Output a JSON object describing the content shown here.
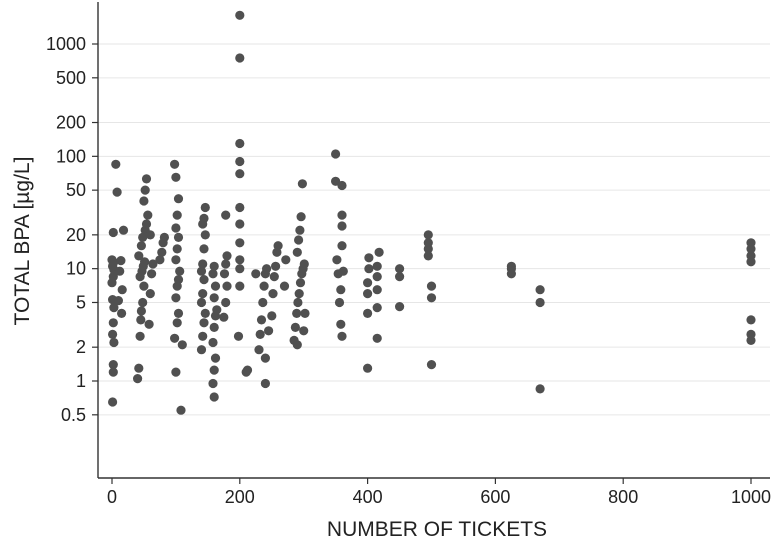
{
  "chart_data": {
    "type": "scatter",
    "title": "",
    "xlabel": "NUMBER OF TICKETS",
    "ylabel": "TOTAL BPA [µg/L]",
    "xlim": [
      -20,
      1020
    ],
    "ylim": [
      0.1,
      3000
    ],
    "y_scale": "log",
    "grid": "horizontal",
    "x_ticks": [
      0,
      200,
      400,
      600,
      800,
      1000
    ],
    "x_tick_labels": [
      "0",
      "200",
      "400",
      "600",
      "800",
      "1000"
    ],
    "y_ticks": [
      0.5,
      1,
      2,
      5,
      10,
      20,
      50,
      100,
      200,
      500,
      1000
    ],
    "y_tick_labels": [
      "0.5",
      "1",
      "2",
      "5",
      "10",
      "20",
      "50",
      "100",
      "200",
      "500",
      "1000"
    ],
    "marker_color": "#505050",
    "series": [
      {
        "points": [
          [
            1,
            0.65
          ],
          [
            2,
            1.2
          ],
          [
            2,
            1.4
          ],
          [
            3,
            2.2
          ],
          [
            1,
            2.6
          ],
          [
            2,
            3.3
          ],
          [
            3,
            4.5
          ],
          [
            1,
            5.3
          ],
          [
            0,
            7.5
          ],
          [
            2,
            8.5
          ],
          [
            3,
            9.8
          ],
          [
            1,
            10.5
          ],
          [
            2,
            11.2
          ],
          [
            0,
            12.0
          ],
          [
            2,
            21
          ],
          [
            6,
            85
          ],
          [
            8,
            48
          ],
          [
            10,
            5.2
          ],
          [
            12,
            9.5
          ],
          [
            14,
            11.8
          ],
          [
            16,
            6.5
          ],
          [
            18,
            22
          ],
          [
            15,
            4.0
          ],
          [
            40,
            1.05
          ],
          [
            42,
            1.3
          ],
          [
            44,
            2.5
          ],
          [
            45,
            3.5
          ],
          [
            46,
            4.2
          ],
          [
            48,
            5.0
          ],
          [
            50,
            7.0
          ],
          [
            44,
            8.5
          ],
          [
            47,
            9.5
          ],
          [
            49,
            10.5
          ],
          [
            51,
            11.5
          ],
          [
            42,
            13.0
          ],
          [
            46,
            16
          ],
          [
            48,
            19
          ],
          [
            52,
            22
          ],
          [
            54,
            25
          ],
          [
            56,
            30
          ],
          [
            50,
            40
          ],
          [
            52,
            50
          ],
          [
            54,
            63
          ],
          [
            58,
            3.2
          ],
          [
            60,
            6.0
          ],
          [
            62,
            9.0
          ],
          [
            64,
            11.0
          ],
          [
            60,
            20
          ],
          [
            75,
            12.0
          ],
          [
            78,
            14.0
          ],
          [
            80,
            17.0
          ],
          [
            82,
            19.0
          ],
          [
            100,
            1.2
          ],
          [
            98,
            2.4
          ],
          [
            102,
            3.3
          ],
          [
            104,
            4.0
          ],
          [
            100,
            5.5
          ],
          [
            102,
            7.0
          ],
          [
            104,
            8.0
          ],
          [
            106,
            9.5
          ],
          [
            100,
            12.0
          ],
          [
            102,
            15.0
          ],
          [
            104,
            19.0
          ],
          [
            100,
            23.0
          ],
          [
            102,
            30.0
          ],
          [
            104,
            42.0
          ],
          [
            100,
            65.0
          ],
          [
            98,
            85.0
          ],
          [
            108,
            0.55
          ],
          [
            110,
            2.1
          ],
          [
            140,
            1.9
          ],
          [
            142,
            2.5
          ],
          [
            144,
            3.3
          ],
          [
            146,
            4.0
          ],
          [
            140,
            5.0
          ],
          [
            142,
            6.0
          ],
          [
            144,
            8.0
          ],
          [
            140,
            9.5
          ],
          [
            142,
            11.0
          ],
          [
            144,
            15.0
          ],
          [
            146,
            20.0
          ],
          [
            142,
            25.0
          ],
          [
            144,
            28.0
          ],
          [
            146,
            35.0
          ],
          [
            160,
            0.72
          ],
          [
            158,
            0.95
          ],
          [
            160,
            1.25
          ],
          [
            162,
            1.6
          ],
          [
            158,
            2.2
          ],
          [
            160,
            3.0
          ],
          [
            162,
            3.8
          ],
          [
            164,
            4.3
          ],
          [
            160,
            5.5
          ],
          [
            162,
            7.0
          ],
          [
            158,
            9.0
          ],
          [
            160,
            10.5
          ],
          [
            175,
            3.7
          ],
          [
            178,
            5.0
          ],
          [
            180,
            7.0
          ],
          [
            176,
            9.0
          ],
          [
            178,
            11.0
          ],
          [
            180,
            13.0
          ],
          [
            178,
            30.0
          ],
          [
            200,
            1800
          ],
          [
            200,
            750
          ],
          [
            200,
            130
          ],
          [
            200,
            90
          ],
          [
            200,
            70
          ],
          [
            198,
            2.5
          ],
          [
            200,
            7.0
          ],
          [
            200,
            10.0
          ],
          [
            200,
            12.0
          ],
          [
            200,
            17.0
          ],
          [
            200,
            25.0
          ],
          [
            200,
            35.0
          ],
          [
            210,
            1.2
          ],
          [
            212,
            1.25
          ],
          [
            230,
            1.9
          ],
          [
            232,
            2.6
          ],
          [
            234,
            3.5
          ],
          [
            236,
            5.0
          ],
          [
            238,
            7.0
          ],
          [
            240,
            9.0
          ],
          [
            242,
            10.0
          ],
          [
            240,
            1.6
          ],
          [
            240,
            0.95
          ],
          [
            225,
            9.0
          ],
          [
            245,
            2.8
          ],
          [
            250,
            3.8
          ],
          [
            252,
            6.0
          ],
          [
            254,
            8.5
          ],
          [
            256,
            10.5
          ],
          [
            258,
            14.0
          ],
          [
            260,
            16.0
          ],
          [
            270,
            7.0
          ],
          [
            272,
            12.0
          ],
          [
            285,
            2.3
          ],
          [
            287,
            3.0
          ],
          [
            289,
            4.0
          ],
          [
            291,
            5.0
          ],
          [
            293,
            6.0
          ],
          [
            295,
            7.5
          ],
          [
            297,
            9.0
          ],
          [
            299,
            10.0
          ],
          [
            301,
            11.0
          ],
          [
            290,
            14.0
          ],
          [
            292,
            18.0
          ],
          [
            294,
            22.0
          ],
          [
            296,
            29.0
          ],
          [
            298,
            57.0
          ],
          [
            290,
            2.1
          ],
          [
            300,
            2.8
          ],
          [
            302,
            4.0
          ],
          [
            350,
            105
          ],
          [
            350,
            60
          ],
          [
            352,
            12.0
          ],
          [
            354,
            9.0
          ],
          [
            356,
            5.0
          ],
          [
            358,
            6.5
          ],
          [
            360,
            55.0
          ],
          [
            360,
            30.0
          ],
          [
            360,
            24.0
          ],
          [
            360,
            16.0
          ],
          [
            362,
            9.5
          ],
          [
            358,
            3.2
          ],
          [
            360,
            2.5
          ],
          [
            400,
            1.3
          ],
          [
            400,
            4.0
          ],
          [
            400,
            6.0
          ],
          [
            400,
            7.5
          ],
          [
            402,
            10.0
          ],
          [
            402,
            12.5
          ],
          [
            415,
            2.4
          ],
          [
            415,
            4.5
          ],
          [
            415,
            6.5
          ],
          [
            415,
            8.5
          ],
          [
            415,
            10.5
          ],
          [
            418,
            14.0
          ],
          [
            450,
            4.6
          ],
          [
            450,
            8.5
          ],
          [
            450,
            10.0
          ],
          [
            495,
            20.0
          ],
          [
            495,
            17.0
          ],
          [
            495,
            15.0
          ],
          [
            495,
            13.0
          ],
          [
            500,
            7.0
          ],
          [
            500,
            5.5
          ],
          [
            500,
            1.4
          ],
          [
            625,
            9.0
          ],
          [
            625,
            10.0
          ],
          [
            625,
            10.5
          ],
          [
            670,
            5.0
          ],
          [
            670,
            6.5
          ],
          [
            670,
            0.85
          ],
          [
            1000,
            17.0
          ],
          [
            1000,
            15.0
          ],
          [
            1000,
            13.0
          ],
          [
            1000,
            11.5
          ],
          [
            1000,
            3.5
          ],
          [
            1000,
            2.6
          ],
          [
            1000,
            2.3
          ]
        ]
      }
    ]
  }
}
